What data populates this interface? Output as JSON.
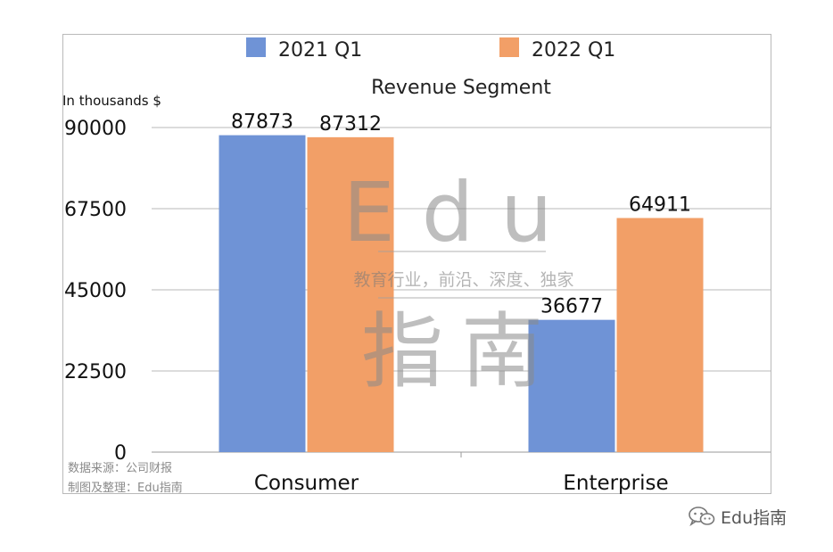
{
  "chart_data": {
    "type": "bar",
    "title": "Revenue Segment",
    "ylabel": "In thousands $",
    "xlabel": "",
    "categories": [
      "Consumer",
      "Enterprise"
    ],
    "series": [
      {
        "name": "2021 Q1",
        "color": "#6f93d6",
        "values": [
          87873,
          36677
        ]
      },
      {
        "name": "2022 Q1",
        "color": "#f29f67",
        "values": [
          87312,
          64911
        ]
      }
    ],
    "ylim": [
      0,
      90000
    ],
    "yticks": [
      0,
      22500,
      45000,
      67500,
      90000
    ],
    "grid": true,
    "legend": "top"
  },
  "watermark": {
    "latin": "Edu",
    "slogan": "教育行业，前沿、深度、独家",
    "chinese": "指南"
  },
  "source_note": {
    "line1": "数据来源：公司财报",
    "line2": "制图及整理：Edu指南"
  },
  "credit": {
    "label": "Edu指南",
    "icon": "wechat-icon"
  }
}
